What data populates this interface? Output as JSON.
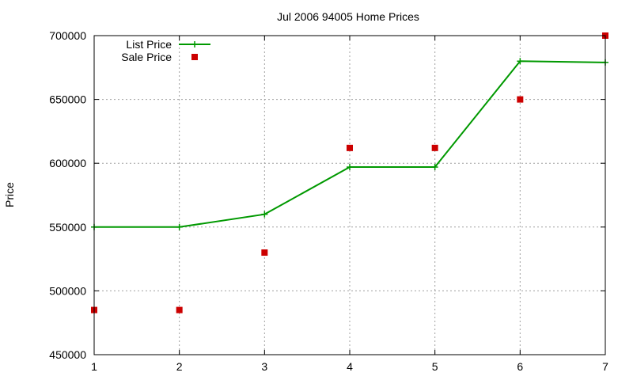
{
  "chart_data": {
    "type": "line",
    "title": "Jul 2006 94005 Home Prices",
    "xlabel": "",
    "ylabel": "Price",
    "x": [
      1,
      2,
      3,
      4,
      5,
      6,
      7
    ],
    "xlim": [
      1,
      7
    ],
    "ylim": [
      450000,
      700000
    ],
    "x_ticks": [
      "1",
      "2",
      "3",
      "4",
      "5",
      "6",
      "7"
    ],
    "y_ticks": [
      450000,
      500000,
      550000,
      600000,
      650000,
      700000
    ],
    "y_tick_labels": [
      "450000",
      "500000",
      "550000",
      "600000",
      "650000",
      "700000"
    ],
    "grid": true,
    "legend_position": "top-left",
    "series": [
      {
        "name": "List Price",
        "style": "linespoints",
        "color": "#009900",
        "values": [
          550000,
          550000,
          560000,
          597000,
          597000,
          680000,
          679000
        ]
      },
      {
        "name": "Sale Price",
        "style": "points",
        "color": "#cc0000",
        "values": [
          485000,
          485000,
          530000,
          612000,
          612000,
          650000,
          700000
        ]
      }
    ]
  }
}
